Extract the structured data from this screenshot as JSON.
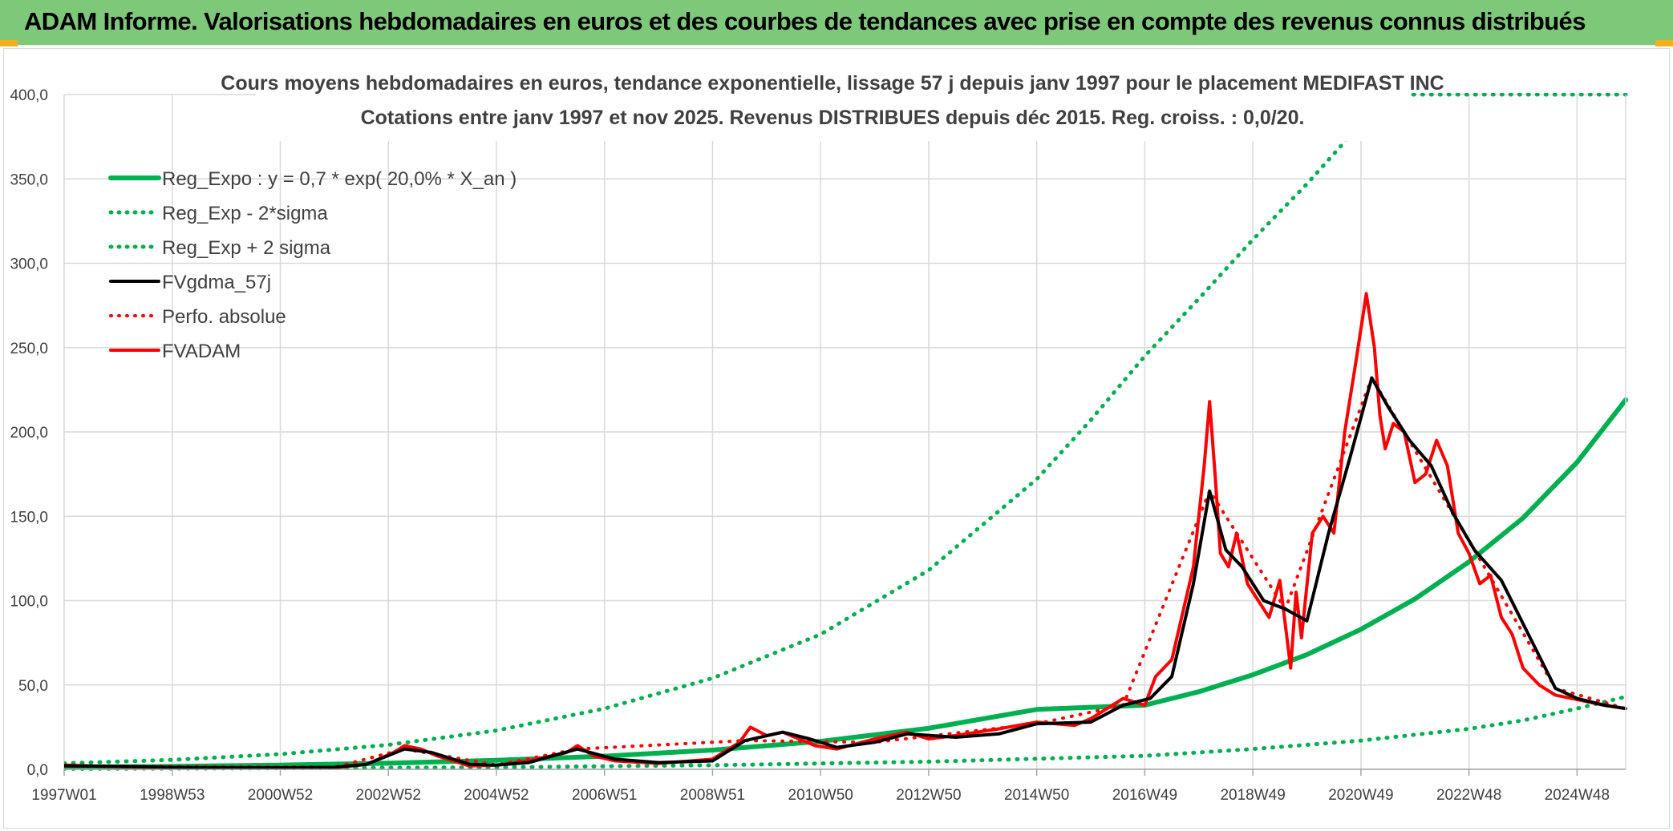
{
  "header": {
    "title": "ADAM Informe. Valorisations hebdomadaires en euros et des courbes de tendances avec prise en compte des revenus connus distribués"
  },
  "colors": {
    "header_bg": "#7ec87a",
    "reg_green": "#00b050",
    "fvgdma_black": "#000000",
    "fvadam_red": "#ff0000",
    "grid": "#d9d9d9"
  },
  "chart_data": {
    "type": "line",
    "title_line1": "Cours moyens hebdomadaires en euros, tendance exponentielle, lissage 57 j depuis janv 1997 pour le placement MEDIFAST INC",
    "title_line2": "Cotations entre janv 1997 et nov 2025. Revenus DISTRIBUES depuis déc 2015. Reg. croiss. : 0,0/20.",
    "x_tick_labels": [
      "1997W01",
      "1998W53",
      "2000W52",
      "2002W52",
      "2004W52",
      "2006W51",
      "2008W51",
      "2010W50",
      "2012W50",
      "2014W50",
      "2016W49",
      "2018W49",
      "2020W49",
      "2022W48",
      "2024W48"
    ],
    "x_ticks_year": [
      1997.0,
      1999.0,
      2001.0,
      2003.0,
      2005.0,
      2007.0,
      2009.0,
      2011.0,
      2013.0,
      2015.0,
      2017.0,
      2019.0,
      2021.0,
      2023.0,
      2025.0
    ],
    "xlim": [
      1997.0,
      2025.9
    ],
    "ylim": [
      0,
      400
    ],
    "y_ticks": [
      0,
      50,
      100,
      150,
      200,
      250,
      300,
      350,
      400
    ],
    "y_tick_labels": [
      "0,0",
      "50,0",
      "100,0",
      "150,0",
      "200,0",
      "250,0",
      "300,0",
      "350,0",
      "400,0"
    ],
    "grid": true,
    "legend_position": "top-left",
    "series": [
      {
        "name": "Reg_Expo : y = 0,7 * exp( 20,0% *  X_an )",
        "style": "solid",
        "color": "#00b050",
        "width": 6,
        "x": [
          1997,
          1999,
          2001,
          2003,
          2005,
          2007,
          2009,
          2011,
          2013,
          2015,
          2017,
          2018,
          2019,
          2020,
          2021,
          2022,
          2023,
          2024,
          2025,
          2025.9
        ],
        "y": [
          1.2,
          1.7,
          2.5,
          3.6,
          5.3,
          7.8,
          11.4,
          16.6,
          24.3,
          35.5,
          38.0,
          46.0,
          56.0,
          68.0,
          83.0,
          101.0,
          123.0,
          149.0,
          182.0,
          219.0
        ]
      },
      {
        "name": "Reg_Exp - 2*sigma",
        "style": "dotted",
        "color": "#00b050",
        "width": 5,
        "x": [
          1997,
          2001,
          2005,
          2009,
          2013,
          2017,
          2019,
          2021,
          2023,
          2024,
          2025,
          2025.9
        ],
        "y": [
          0.3,
          0.6,
          1.2,
          2.4,
          4.5,
          8.0,
          12.0,
          17.0,
          24.0,
          29.0,
          36.0,
          43.0
        ]
      },
      {
        "name": "Reg_Exp + 2 sigma",
        "style": "dotted",
        "color": "#00b050",
        "width": 5,
        "x": [
          1997,
          1999,
          2001,
          2003,
          2005,
          2007,
          2009,
          2011,
          2013,
          2015,
          2016,
          2017,
          2018,
          2019,
          2020,
          2020.7,
          2021.08,
          2025.9
        ],
        "y": [
          3.5,
          5.6,
          9.0,
          14.5,
          23.0,
          36.0,
          54.0,
          80.0,
          118.0,
          172.0,
          207.0,
          245.0,
          279.0,
          314.0,
          347.0,
          372.0,
          400.0,
          400.0
        ]
      },
      {
        "name": "FVgdma_57j",
        "style": "solid",
        "color": "#000000",
        "width": 4,
        "x": [
          1997,
          1998,
          1999,
          2000,
          2001,
          2002,
          2002.6,
          2003.3,
          2003.8,
          2004.5,
          2005,
          2005.6,
          2006.5,
          2007.2,
          2008,
          2009,
          2009.6,
          2010.3,
          2010.8,
          2011.3,
          2012,
          2012.6,
          2013.5,
          2014.3,
          2015,
          2016,
          2016.6,
          2017.1,
          2017.5,
          2017.9,
          2018.2,
          2018.5,
          2018.8,
          2019.2,
          2019.6,
          2020.0,
          2020.4,
          2020.8,
          2021.2,
          2021.5,
          2021.9,
          2022.3,
          2022.7,
          2023.1,
          2023.6,
          2024.1,
          2024.6,
          2025.0,
          2025.5,
          2025.9
        ],
        "y": [
          2.0,
          1.8,
          1.2,
          1.0,
          1.0,
          1.2,
          3.0,
          12.0,
          10.0,
          3.0,
          2.5,
          4.0,
          12.0,
          6.0,
          4.0,
          5.0,
          17.0,
          22.0,
          18.0,
          13.0,
          16.0,
          21.0,
          19.0,
          21.0,
          27.0,
          28.0,
          38.0,
          42.0,
          55.0,
          110.0,
          165.0,
          130.0,
          120.0,
          100.0,
          95.0,
          88.0,
          140.0,
          185.0,
          232.0,
          215.0,
          195.0,
          180.0,
          152.0,
          130.0,
          112.0,
          80.0,
          48.0,
          42.0,
          38.0,
          36.0
        ]
      },
      {
        "name": "Perfo. absolue",
        "style": "dotted",
        "color": "#ff0000",
        "width": 4,
        "x": [
          1997,
          2002,
          2003.3,
          2005,
          2006.5,
          2009.6,
          2012,
          2015,
          2016.6,
          2018.2,
          2019.6,
          2021.2,
          2023.1,
          2024.6,
          2025.9
        ],
        "y": [
          2.0,
          1.2,
          12.0,
          2.5,
          12.0,
          17.0,
          16.0,
          27.0,
          38.0,
          165.0,
          95.0,
          232.0,
          130.0,
          48.0,
          36.0
        ]
      },
      {
        "name": "FVADAM",
        "style": "solid",
        "color": "#ff0000",
        "width": 4,
        "x": [
          1997,
          1998,
          1999,
          2000,
          2001,
          2002,
          2002.6,
          2003.1,
          2003.3,
          2003.6,
          2003.9,
          2004.5,
          2005,
          2005.6,
          2006.3,
          2006.5,
          2006.8,
          2007.2,
          2008,
          2008.6,
          2009,
          2009.5,
          2009.7,
          2010.0,
          2010.3,
          2010.6,
          2010.9,
          2011.3,
          2012,
          2012.6,
          2013.0,
          2013.5,
          2014.3,
          2015,
          2015.7,
          2016,
          2016.6,
          2017.0,
          2017.2,
          2017.5,
          2017.9,
          2018.1,
          2018.2,
          2018.3,
          2018.4,
          2018.55,
          2018.7,
          2018.9,
          2019.1,
          2019.3,
          2019.5,
          2019.7,
          2019.8,
          2019.9,
          2020.1,
          2020.3,
          2020.5,
          2020.7,
          2020.9,
          2021.1,
          2021.25,
          2021.35,
          2021.45,
          2021.6,
          2021.8,
          2022.0,
          2022.2,
          2022.4,
          2022.6,
          2022.8,
          2023.0,
          2023.2,
          2023.4,
          2023.6,
          2023.8,
          2024.0,
          2024.3,
          2024.6,
          2024.9,
          2025.2,
          2025.5,
          2025.9
        ],
        "y": [
          2.5,
          1.5,
          1.0,
          0.8,
          0.8,
          0.9,
          3.0,
          10.0,
          14.0,
          12.0,
          8.0,
          2.0,
          2.5,
          5.0,
          10.0,
          14.0,
          8.0,
          5.0,
          3.5,
          5.0,
          6.0,
          16.0,
          25.0,
          20.0,
          22.0,
          18.0,
          14.0,
          12.0,
          18.0,
          22.0,
          18.0,
          20.0,
          24.0,
          28.0,
          26.0,
          30.0,
          42.0,
          38.0,
          55.0,
          65.0,
          120.0,
          180.0,
          218.0,
          175.0,
          128.0,
          120.0,
          140.0,
          110.0,
          100.0,
          90.0,
          112.0,
          60.0,
          105.0,
          78.0,
          140.0,
          150.0,
          140.0,
          200.0,
          240.0,
          282.0,
          250.0,
          210.0,
          190.0,
          205.0,
          200.0,
          170.0,
          175.0,
          195.0,
          180.0,
          140.0,
          128.0,
          110.0,
          115.0,
          90.0,
          80.0,
          60.0,
          50.0,
          44.0,
          42.0,
          40.0,
          38.0,
          36.0
        ]
      }
    ]
  }
}
